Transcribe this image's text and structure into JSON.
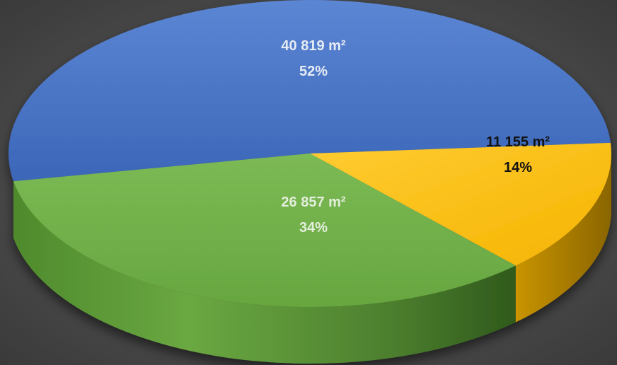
{
  "chart_data": {
    "type": "pie",
    "style": "3d",
    "slices": [
      {
        "value_label": "40 819 m²",
        "percent_label": "52%",
        "value": 40819,
        "percent": 52,
        "color": "#4472C4",
        "label_color": "#E6ECF5"
      },
      {
        "value_label": "11 155 m²",
        "percent_label": "14%",
        "value": 11155,
        "percent": 14,
        "color": "#FFC000",
        "label_color": "#111111"
      },
      {
        "value_label": "26 857 m²",
        "percent_label": "34%",
        "value": 26857,
        "percent": 34,
        "color": "#70AD47",
        "label_color": "#E3EEDC"
      }
    ],
    "legend": "none"
  }
}
